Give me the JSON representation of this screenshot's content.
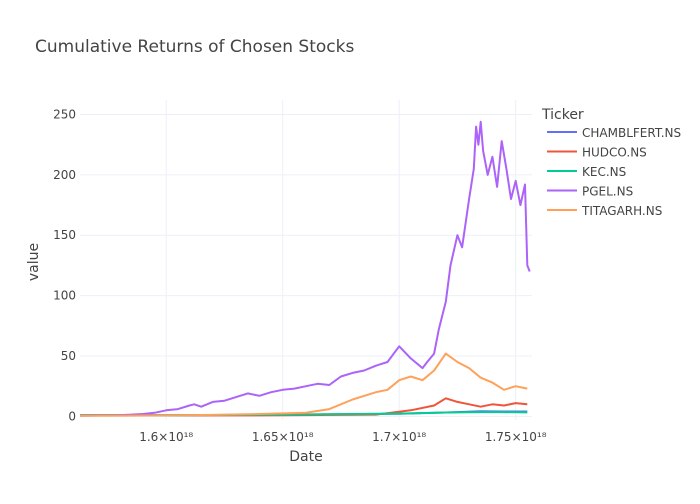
{
  "chart_data": {
    "type": "line",
    "title": "Cumulative Returns of Chosen Stocks",
    "xlabel": "Date",
    "ylabel": "value",
    "x_ticks": [
      "1.6×10¹⁸",
      "1.65×10¹⁸",
      "1.7×10¹⁸",
      "1.75×10¹⁸"
    ],
    "x_tick_values": [
      1.6,
      1.65,
      1.7,
      1.75
    ],
    "x_unit": "1e18",
    "y_ticks": [
      "0",
      "50",
      "100",
      "150",
      "200",
      "250"
    ],
    "y_tick_values": [
      0,
      50,
      100,
      150,
      200,
      250
    ],
    "xlim": [
      1.563,
      1.757
    ],
    "ylim": [
      -3,
      262
    ],
    "grid": true,
    "legend_title": "Ticker",
    "legend_position": "top-right",
    "series": [
      {
        "name": "CHAMBLFERT.NS",
        "color": "#636efa",
        "x": [
          1.563,
          1.6,
          1.65,
          1.7,
          1.72,
          1.735,
          1.745,
          1.755
        ],
        "y": [
          1,
          0.9,
          1.3,
          2.2,
          3.2,
          4.2,
          4.0,
          4.0
        ]
      },
      {
        "name": "HUDCO.NS",
        "color": "#EF553B",
        "x": [
          1.563,
          1.6,
          1.65,
          1.69,
          1.705,
          1.715,
          1.72,
          1.725,
          1.73,
          1.735,
          1.74,
          1.745,
          1.75,
          1.755
        ],
        "y": [
          1,
          0.8,
          0.9,
          1.5,
          5,
          9,
          15,
          12,
          10,
          8,
          10,
          9,
          11,
          10
        ]
      },
      {
        "name": "KEC.NS",
        "color": "#00cc96",
        "x": [
          1.563,
          1.6,
          1.65,
          1.7,
          1.72,
          1.74,
          1.755
        ],
        "y": [
          1,
          1.0,
          1.5,
          2.3,
          3.2,
          3.6,
          3.3
        ]
      },
      {
        "name": "PGEL.NS",
        "color": "#ab63fa",
        "x": [
          1.563,
          1.58,
          1.59,
          1.595,
          1.6,
          1.605,
          1.61,
          1.612,
          1.615,
          1.62,
          1.625,
          1.63,
          1.635,
          1.64,
          1.645,
          1.65,
          1.655,
          1.66,
          1.665,
          1.67,
          1.675,
          1.68,
          1.685,
          1.69,
          1.695,
          1.7,
          1.705,
          1.71,
          1.712,
          1.715,
          1.717,
          1.72,
          1.722,
          1.725,
          1.727,
          1.73,
          1.732,
          1.733,
          1.734,
          1.735,
          1.736,
          1.738,
          1.74,
          1.742,
          1.744,
          1.746,
          1.748,
          1.75,
          1.752,
          1.754,
          1.755,
          1.756
        ],
        "y": [
          0.5,
          1,
          2,
          3,
          5,
          6,
          9,
          10,
          8,
          12,
          13,
          16,
          19,
          17,
          20,
          22,
          23,
          25,
          27,
          26,
          33,
          36,
          38,
          42,
          45,
          58,
          48,
          40,
          45,
          52,
          72,
          95,
          125,
          150,
          140,
          180,
          205,
          240,
          225,
          244,
          220,
          200,
          215,
          190,
          228,
          205,
          180,
          195,
          175,
          192,
          125,
          120
        ]
      },
      {
        "name": "TITAGARH.NS",
        "color": "#FFA15A",
        "x": [
          1.563,
          1.6,
          1.62,
          1.64,
          1.66,
          1.67,
          1.68,
          1.69,
          1.695,
          1.7,
          1.705,
          1.71,
          1.715,
          1.72,
          1.725,
          1.73,
          1.735,
          1.74,
          1.745,
          1.75,
          1.755
        ],
        "y": [
          0.5,
          0.8,
          1.2,
          2,
          3,
          6,
          14,
          20,
          22,
          30,
          33,
          30,
          38,
          52,
          45,
          40,
          32,
          28,
          22,
          25,
          23
        ]
      }
    ]
  }
}
